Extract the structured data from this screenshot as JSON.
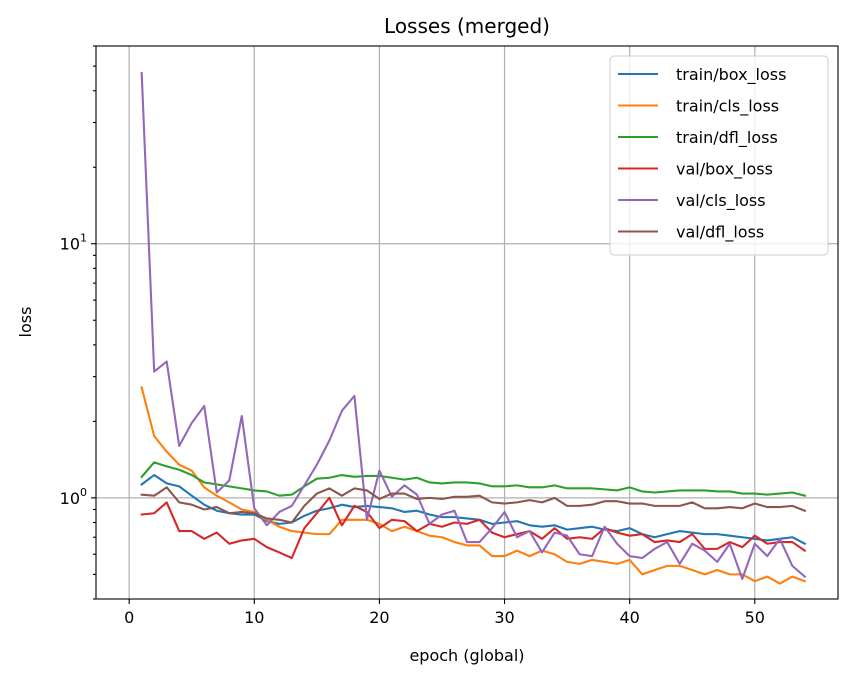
{
  "chart_data": {
    "type": "line",
    "title": "Losses (merged)",
    "xlabel": "epoch (global)",
    "ylabel": "loss",
    "yscale": "log",
    "xlim": [
      -2.65,
      56.65
    ],
    "ylim": [
      0.4,
      60
    ],
    "xticks": [
      0,
      10,
      20,
      30,
      40,
      50
    ],
    "yticks": [
      1,
      10
    ],
    "ytick_labels": [
      {
        "base": "10",
        "exp": "0"
      },
      {
        "base": "10",
        "exp": "1"
      }
    ],
    "grid": true,
    "legend_position": "top-right",
    "x": [
      1,
      2,
      3,
      4,
      5,
      6,
      7,
      8,
      9,
      10,
      11,
      12,
      13,
      14,
      15,
      16,
      17,
      18,
      19,
      20,
      21,
      22,
      23,
      24,
      25,
      26,
      27,
      28,
      29,
      30,
      31,
      32,
      33,
      34,
      35,
      36,
      37,
      38,
      39,
      40,
      41,
      42,
      43,
      44,
      45,
      46,
      47,
      48,
      49,
      50,
      51,
      52,
      53,
      54
    ],
    "series": [
      {
        "name": "train/box_loss",
        "color": "#1f77b4",
        "values": [
          1.13,
          1.23,
          1.14,
          1.11,
          1.02,
          0.94,
          0.89,
          0.87,
          0.86,
          0.86,
          0.81,
          0.79,
          0.8,
          0.85,
          0.89,
          0.91,
          0.94,
          0.92,
          0.93,
          0.92,
          0.91,
          0.88,
          0.89,
          0.86,
          0.84,
          0.84,
          0.83,
          0.82,
          0.79,
          0.8,
          0.81,
          0.78,
          0.77,
          0.78,
          0.75,
          0.76,
          0.77,
          0.75,
          0.74,
          0.76,
          0.72,
          0.7,
          0.72,
          0.74,
          0.73,
          0.72,
          0.72,
          0.71,
          0.7,
          0.69,
          0.68,
          0.69,
          0.7,
          0.66
        ]
      },
      {
        "name": "train/cls_loss",
        "color": "#ff7f0e",
        "values": [
          2.72,
          1.75,
          1.52,
          1.35,
          1.28,
          1.1,
          1.02,
          0.96,
          0.9,
          0.88,
          0.82,
          0.77,
          0.74,
          0.73,
          0.72,
          0.72,
          0.82,
          0.82,
          0.82,
          0.79,
          0.74,
          0.77,
          0.74,
          0.71,
          0.7,
          0.67,
          0.65,
          0.65,
          0.59,
          0.59,
          0.62,
          0.59,
          0.62,
          0.6,
          0.56,
          0.55,
          0.57,
          0.56,
          0.55,
          0.57,
          0.5,
          0.52,
          0.54,
          0.54,
          0.52,
          0.5,
          0.52,
          0.5,
          0.5,
          0.47,
          0.49,
          0.46,
          0.49,
          0.47
        ]
      },
      {
        "name": "train/dfl_loss",
        "color": "#2ca02c",
        "values": [
          1.21,
          1.38,
          1.33,
          1.29,
          1.23,
          1.15,
          1.13,
          1.11,
          1.09,
          1.07,
          1.06,
          1.02,
          1.03,
          1.11,
          1.19,
          1.2,
          1.23,
          1.21,
          1.22,
          1.22,
          1.2,
          1.18,
          1.2,
          1.15,
          1.14,
          1.15,
          1.15,
          1.14,
          1.11,
          1.11,
          1.12,
          1.1,
          1.1,
          1.12,
          1.09,
          1.09,
          1.09,
          1.08,
          1.07,
          1.1,
          1.06,
          1.05,
          1.06,
          1.07,
          1.07,
          1.07,
          1.06,
          1.06,
          1.04,
          1.04,
          1.03,
          1.04,
          1.05,
          1.02
        ]
      },
      {
        "name": "val/box_loss",
        "color": "#d62728",
        "values": [
          0.86,
          0.87,
          0.96,
          0.74,
          0.74,
          0.69,
          0.73,
          0.66,
          0.68,
          0.69,
          0.64,
          0.61,
          0.58,
          0.76,
          0.87,
          1.0,
          0.78,
          0.93,
          0.88,
          0.76,
          0.82,
          0.81,
          0.74,
          0.79,
          0.77,
          0.8,
          0.79,
          0.82,
          0.73,
          0.7,
          0.72,
          0.74,
          0.69,
          0.76,
          0.69,
          0.7,
          0.69,
          0.76,
          0.73,
          0.71,
          0.72,
          0.67,
          0.68,
          0.67,
          0.72,
          0.63,
          0.63,
          0.67,
          0.64,
          0.71,
          0.66,
          0.67,
          0.67,
          0.62
        ]
      },
      {
        "name": "val/cls_loss",
        "color": "#9467bd",
        "values": [
          47.0,
          3.14,
          3.44,
          1.6,
          1.97,
          2.3,
          1.05,
          1.17,
          2.1,
          0.91,
          0.78,
          0.88,
          0.93,
          1.12,
          1.35,
          1.68,
          2.2,
          2.52,
          0.82,
          1.28,
          1.01,
          1.12,
          1.03,
          0.79,
          0.86,
          0.89,
          0.67,
          0.67,
          0.76,
          0.88,
          0.7,
          0.74,
          0.61,
          0.73,
          0.71,
          0.6,
          0.59,
          0.77,
          0.66,
          0.59,
          0.58,
          0.63,
          0.67,
          0.55,
          0.66,
          0.62,
          0.56,
          0.66,
          0.48,
          0.66,
          0.59,
          0.69,
          0.54,
          0.49
        ]
      },
      {
        "name": "val/dfl_loss",
        "color": "#8c564b",
        "values": [
          1.03,
          1.02,
          1.1,
          0.96,
          0.94,
          0.9,
          0.92,
          0.87,
          0.88,
          0.87,
          0.83,
          0.82,
          0.8,
          0.93,
          1.04,
          1.09,
          1.02,
          1.09,
          1.07,
          0.99,
          1.04,
          1.04,
          0.99,
          1.0,
          0.99,
          1.01,
          1.01,
          1.02,
          0.96,
          0.95,
          0.96,
          0.98,
          0.96,
          1.0,
          0.93,
          0.93,
          0.94,
          0.97,
          0.97,
          0.95,
          0.95,
          0.93,
          0.93,
          0.93,
          0.96,
          0.91,
          0.91,
          0.92,
          0.91,
          0.95,
          0.92,
          0.92,
          0.93,
          0.89
        ]
      }
    ]
  }
}
